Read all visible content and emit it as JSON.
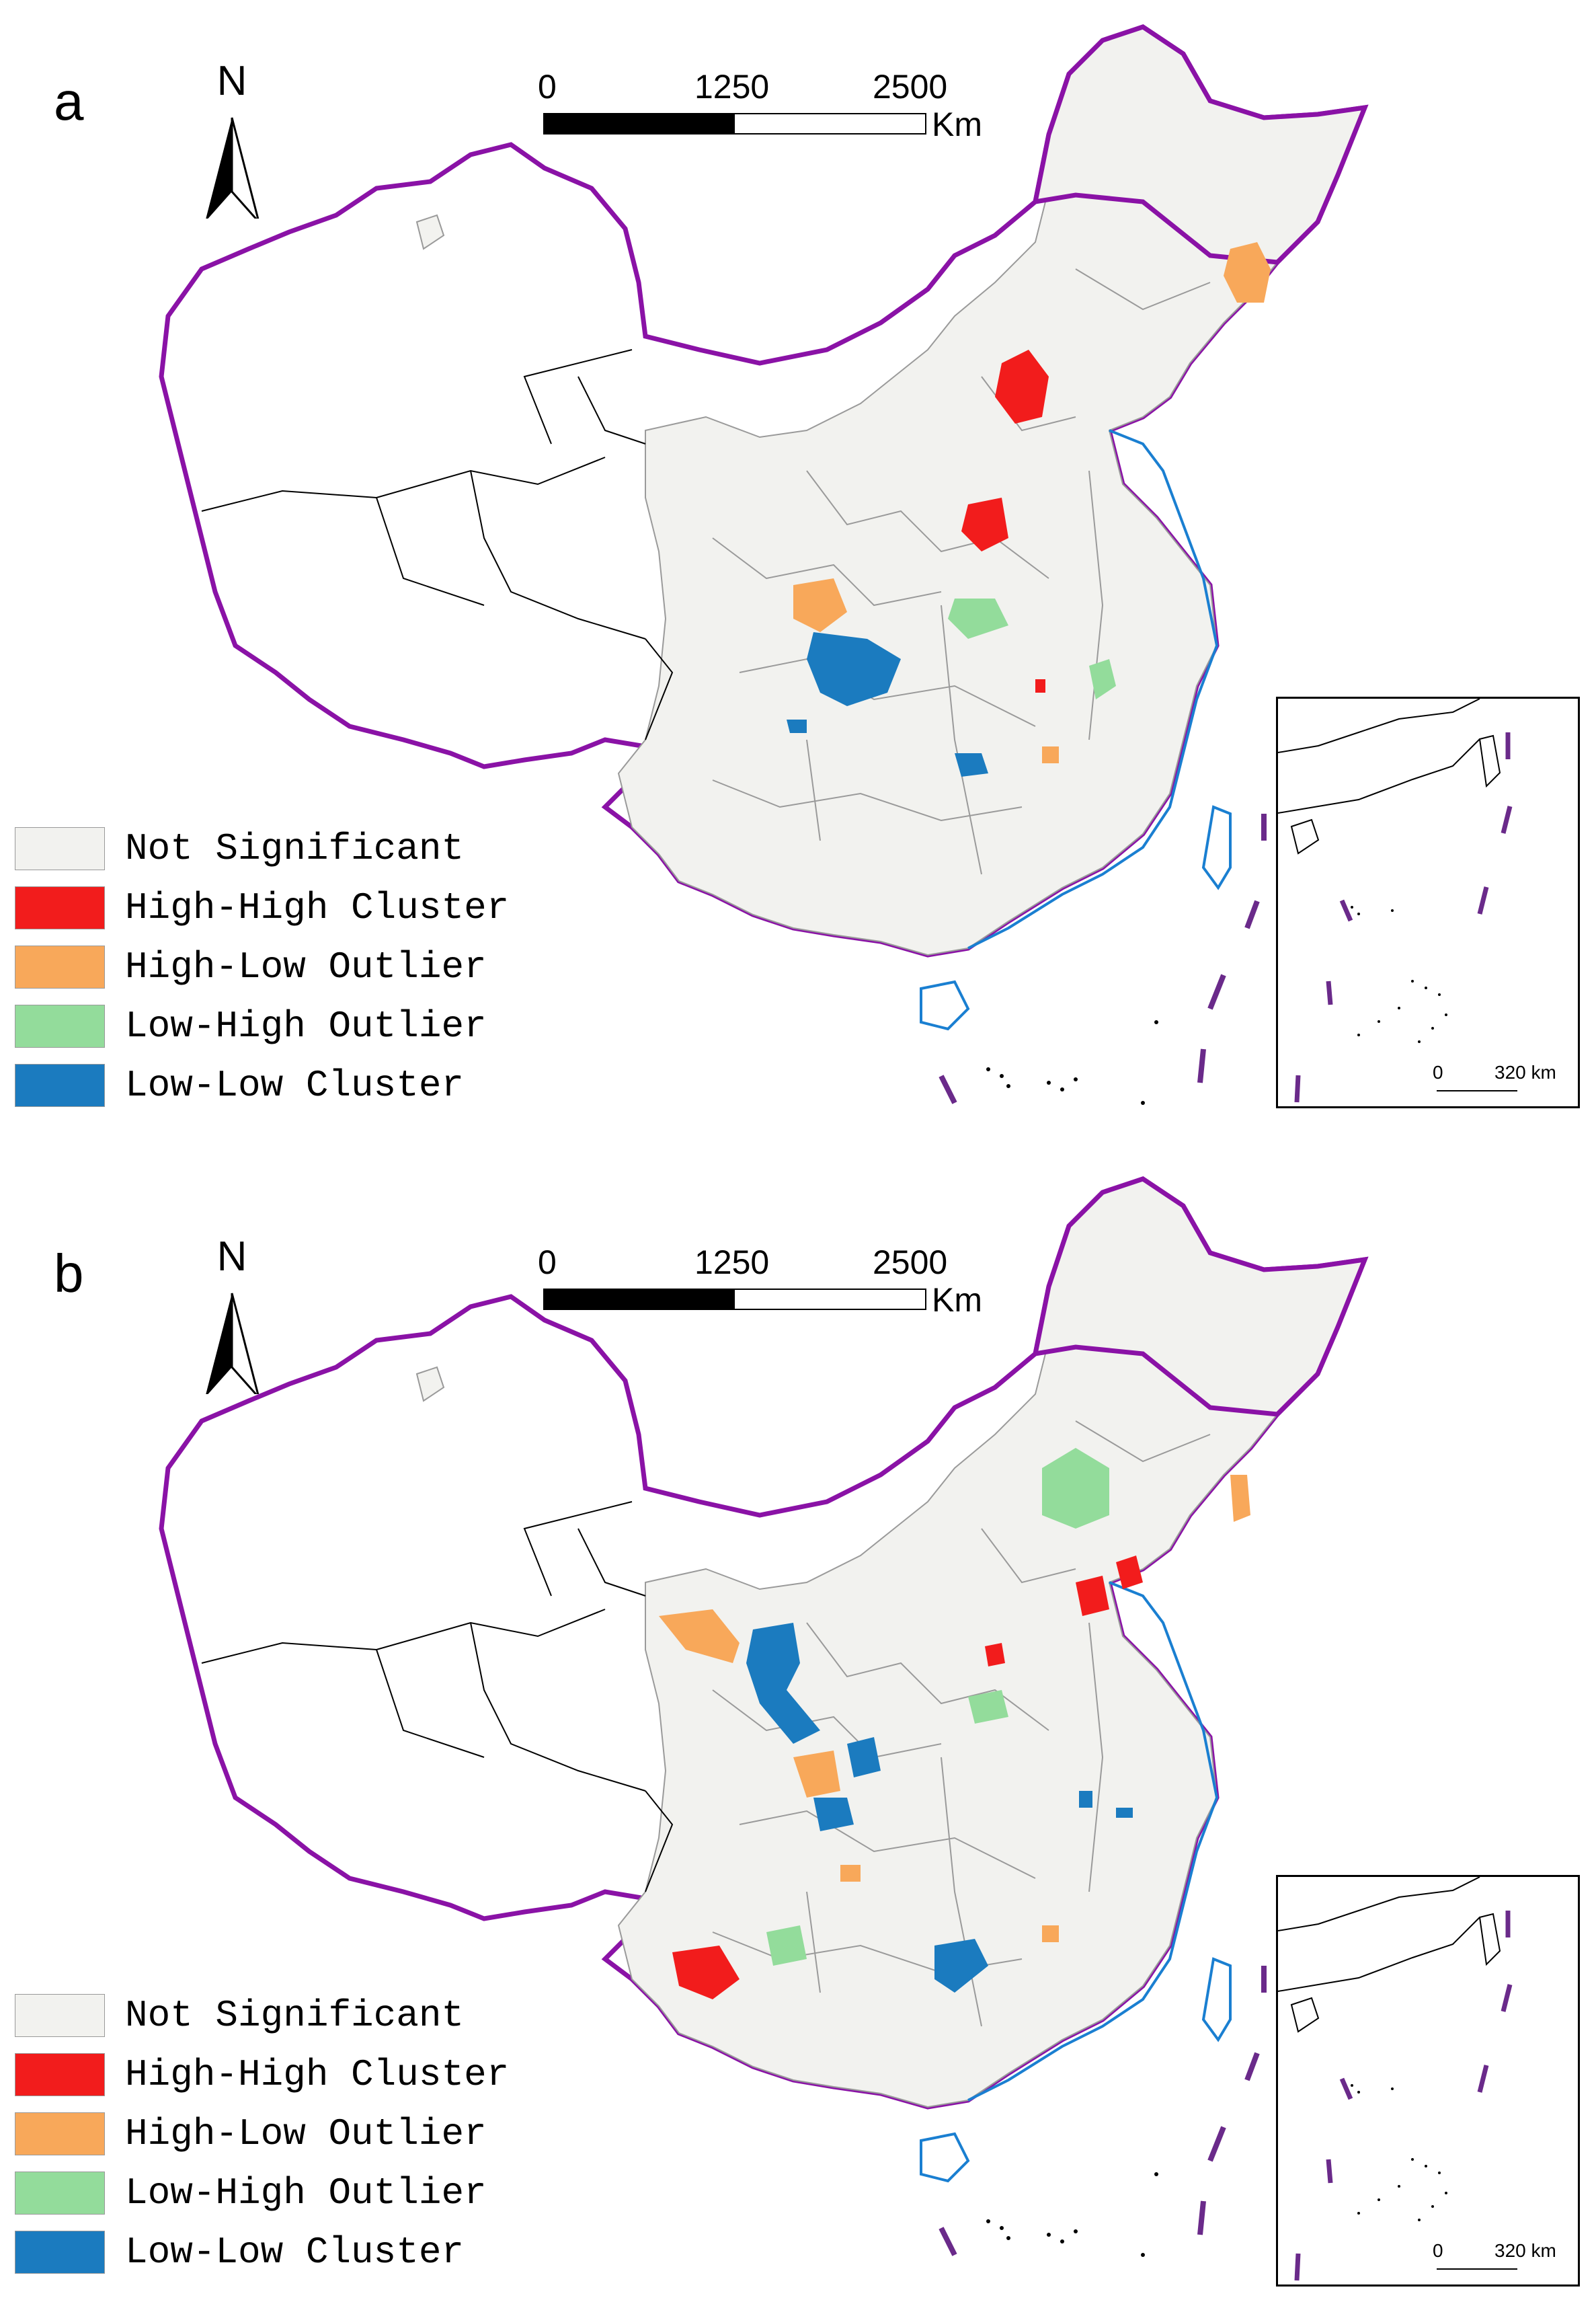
{
  "panels": [
    {
      "letter": "a",
      "north_label": "N",
      "scale": {
        "ticks": [
          "0",
          "1250",
          "2500"
        ],
        "unit": "Km"
      },
      "legend": [
        {
          "label": "Not Significant",
          "color": "#f2f2ef"
        },
        {
          "label": "High-High Cluster",
          "color": "#f21c1c"
        },
        {
          "label": "High-Low Outlier",
          "color": "#f8a85a"
        },
        {
          "label": "Low-High Outlier",
          "color": "#93dc9b"
        },
        {
          "label": "Low-Low Cluster",
          "color": "#1b7bbf"
        }
      ],
      "inset_scale": {
        "zero": "0",
        "distance": "320 km"
      }
    },
    {
      "letter": "b",
      "north_label": "N",
      "scale": {
        "ticks": [
          "0",
          "1250",
          "2500"
        ],
        "unit": "Km"
      },
      "legend": [
        {
          "label": "Not Significant",
          "color": "#f2f2ef"
        },
        {
          "label": "High-High Cluster",
          "color": "#f21c1c"
        },
        {
          "label": "High-Low Outlier",
          "color": "#f8a85a"
        },
        {
          "label": "Low-High Outlier",
          "color": "#93dc9b"
        },
        {
          "label": "Low-Low Cluster",
          "color": "#1b7bbf"
        }
      ],
      "inset_scale": {
        "zero": "0",
        "distance": "320 km"
      }
    }
  ],
  "colors": {
    "border": "#8a12a6",
    "coast": "#1a7fd1",
    "province_line": "#000000",
    "region_line": "#9a9a9a",
    "dash": "#6a2a8a"
  }
}
